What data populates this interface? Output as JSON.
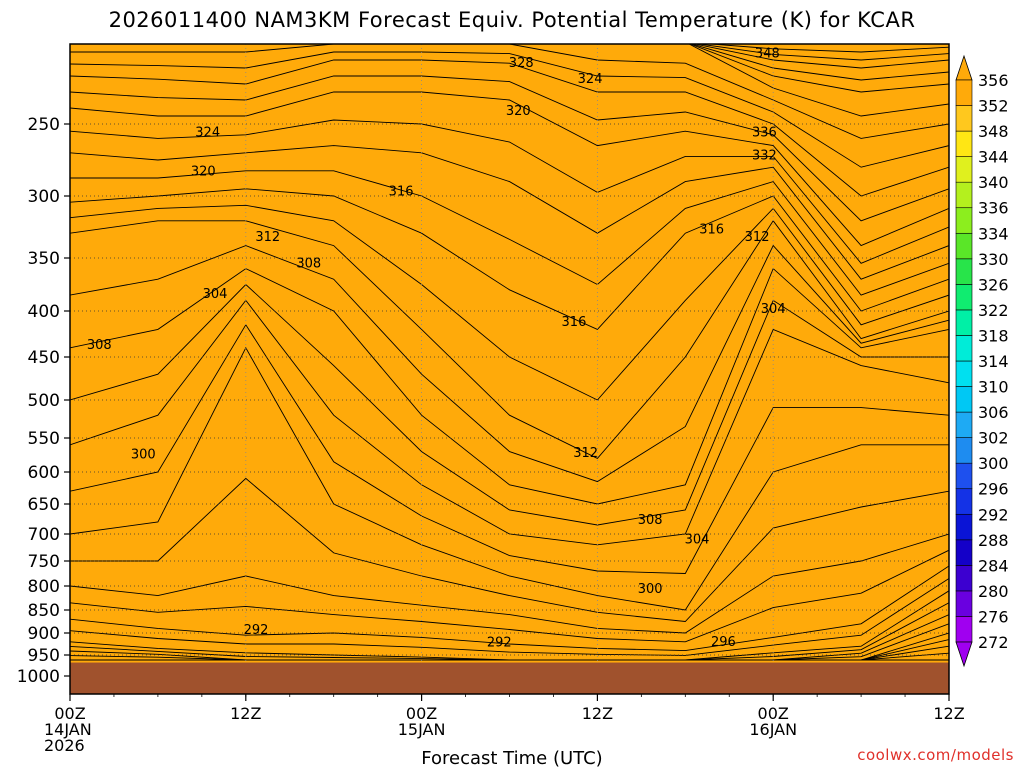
{
  "title": "2026011400 NAM3KM Forecast Equiv. Potential Temperature (K) for KCAR",
  "xlabel": "Forecast Time (UTC)",
  "credit": "coolwx.com/models",
  "chart_data": {
    "type": "heatmap",
    "title": "2026011400 NAM3KM Forecast Equiv. Potential Temperature (K) for KCAR",
    "xlabel": "Forecast Time (UTC)",
    "ylabel": "",
    "x_hours": [
      0,
      6,
      12,
      18,
      24,
      30,
      36,
      42,
      48,
      54,
      60
    ],
    "x_ticks": [
      {
        "hour": 0,
        "lines": [
          "00Z",
          "14JAN",
          "2026"
        ]
      },
      {
        "hour": 12,
        "lines": [
          "12Z"
        ]
      },
      {
        "hour": 24,
        "lines": [
          "00Z",
          "15JAN"
        ]
      },
      {
        "hour": 36,
        "lines": [
          "12Z"
        ]
      },
      {
        "hour": 48,
        "lines": [
          "00Z",
          "16JAN"
        ]
      },
      {
        "hour": 60,
        "lines": [
          "12Z"
        ]
      }
    ],
    "y_ticks": [
      250,
      300,
      350,
      400,
      450,
      500,
      550,
      600,
      650,
      700,
      750,
      800,
      850,
      900,
      950,
      1000
    ],
    "ylim_hPa": [
      200,
      1020
    ],
    "xlim_hours": [
      0,
      60
    ],
    "surface_pressure_hPa": 968,
    "colorbar_levels": [
      272,
      276,
      280,
      284,
      288,
      292,
      296,
      300,
      302,
      306,
      310,
      314,
      318,
      322,
      326,
      330,
      334,
      336,
      340,
      344,
      348,
      352,
      356
    ],
    "colorbar_colors": [
      "#a000f0",
      "#6a00e0",
      "#3c00d0",
      "#1400c8",
      "#0a14d6",
      "#1432e6",
      "#1e50ee",
      "#1e8cf0",
      "#1eaaf4",
      "#00c8f4",
      "#00e0f0",
      "#00ecd8",
      "#00f0a6",
      "#10ec70",
      "#28e44a",
      "#5ae628",
      "#8cee1e",
      "#b4f01e",
      "#e0f01e",
      "#ffe614",
      "#ffc81e",
      "#ffaa0a"
    ],
    "isotherm_profiles": [
      {
        "hour": 0,
        "levels": [
          [
            280,
            962
          ],
          [
            288,
            920
          ],
          [
            292,
            870
          ],
          [
            296,
            800
          ],
          [
            300,
            700
          ],
          [
            304,
            560
          ],
          [
            308,
            440
          ],
          [
            312,
            330
          ],
          [
            316,
            305
          ],
          [
            320,
            270
          ],
          [
            324,
            240
          ],
          [
            328,
            220
          ],
          [
            332,
            205
          ]
        ]
      },
      {
        "hour": 6,
        "levels": [
          [
            280,
            962
          ],
          [
            288,
            935
          ],
          [
            292,
            890
          ],
          [
            296,
            820
          ],
          [
            300,
            680
          ],
          [
            304,
            520
          ],
          [
            308,
            420
          ],
          [
            312,
            320
          ],
          [
            316,
            300
          ],
          [
            320,
            275
          ],
          [
            324,
            245
          ],
          [
            328,
            222
          ],
          [
            332,
            205
          ]
        ]
      },
      {
        "hour": 12,
        "levels": [
          [
            284,
            962
          ],
          [
            288,
            945
          ],
          [
            292,
            905
          ],
          [
            296,
            780
          ],
          [
            300,
            440
          ],
          [
            304,
            390
          ],
          [
            308,
            360
          ],
          [
            312,
            320
          ],
          [
            316,
            295
          ],
          [
            320,
            270
          ],
          [
            324,
            245
          ],
          [
            328,
            225
          ],
          [
            332,
            205
          ]
        ]
      },
      {
        "hour": 18,
        "levels": [
          [
            284,
            962
          ],
          [
            288,
            950
          ],
          [
            292,
            900
          ],
          [
            296,
            820
          ],
          [
            300,
            650
          ],
          [
            304,
            520
          ],
          [
            308,
            400
          ],
          [
            312,
            340
          ],
          [
            316,
            300
          ],
          [
            320,
            265
          ],
          [
            324,
            230
          ],
          [
            328,
            210
          ],
          [
            332,
            200
          ]
        ]
      },
      {
        "hour": 24,
        "levels": [
          [
            284,
            962
          ],
          [
            288,
            955
          ],
          [
            292,
            910
          ],
          [
            296,
            840
          ],
          [
            300,
            720
          ],
          [
            304,
            620
          ],
          [
            308,
            520
          ],
          [
            312,
            420
          ],
          [
            316,
            330
          ],
          [
            320,
            270
          ],
          [
            324,
            230
          ],
          [
            328,
            210
          ],
          [
            332,
            200
          ]
        ]
      },
      {
        "hour": 30,
        "levels": [
          [
            288,
            962
          ],
          [
            292,
            925
          ],
          [
            296,
            860
          ],
          [
            300,
            780
          ],
          [
            304,
            700
          ],
          [
            308,
            620
          ],
          [
            312,
            520
          ],
          [
            316,
            380
          ],
          [
            320,
            290
          ],
          [
            324,
            235
          ],
          [
            328,
            212
          ],
          [
            332,
            200
          ]
        ]
      },
      {
        "hour": 36,
        "levels": [
          [
            288,
            962
          ],
          [
            292,
            935
          ],
          [
            296,
            890
          ],
          [
            300,
            820
          ],
          [
            304,
            720
          ],
          [
            308,
            650
          ],
          [
            312,
            580
          ],
          [
            316,
            420
          ],
          [
            320,
            330
          ],
          [
            324,
            265
          ],
          [
            328,
            230
          ],
          [
            332,
            210
          ]
        ]
      },
      {
        "hour": 42,
        "levels": [
          [
            288,
            962
          ],
          [
            292,
            940
          ],
          [
            296,
            900
          ],
          [
            300,
            850
          ],
          [
            304,
            700
          ],
          [
            308,
            620
          ],
          [
            312,
            450
          ],
          [
            316,
            330
          ],
          [
            320,
            290
          ],
          [
            324,
            255
          ],
          [
            328,
            230
          ],
          [
            332,
            212
          ]
        ]
      },
      {
        "hour": 48,
        "levels": [
          [
            284,
            962
          ],
          [
            288,
            945
          ],
          [
            292,
            910
          ],
          [
            296,
            780
          ],
          [
            300,
            600
          ],
          [
            304,
            420
          ],
          [
            308,
            360
          ],
          [
            312,
            320
          ],
          [
            316,
            300
          ],
          [
            320,
            280
          ],
          [
            324,
            265
          ],
          [
            328,
            250
          ],
          [
            332,
            235
          ],
          [
            336,
            220
          ],
          [
            340,
            210
          ],
          [
            344,
            203
          ]
        ]
      },
      {
        "hour": 54,
        "levels": [
          [
            280,
            962
          ],
          [
            288,
            930
          ],
          [
            292,
            880
          ],
          [
            296,
            750
          ],
          [
            300,
            560
          ],
          [
            304,
            460
          ],
          [
            308,
            440
          ],
          [
            312,
            430
          ],
          [
            316,
            400
          ],
          [
            320,
            370
          ],
          [
            324,
            340
          ],
          [
            328,
            300
          ],
          [
            332,
            260
          ],
          [
            336,
            230
          ],
          [
            340,
            215
          ],
          [
            344,
            205
          ]
        ]
      },
      {
        "hour": 60,
        "levels": [
          [
            272,
            962
          ],
          [
            276,
            930
          ],
          [
            280,
            900
          ],
          [
            284,
            860
          ],
          [
            288,
            810
          ],
          [
            292,
            760
          ],
          [
            296,
            700
          ],
          [
            300,
            560
          ],
          [
            304,
            480
          ],
          [
            308,
            420
          ],
          [
            312,
            400
          ],
          [
            316,
            370
          ],
          [
            320,
            340
          ],
          [
            324,
            310
          ],
          [
            328,
            280
          ],
          [
            332,
            250
          ],
          [
            336,
            225
          ],
          [
            340,
            210
          ],
          [
            344,
            202
          ]
        ]
      }
    ],
    "contour_labels": [
      {
        "text": "328",
        "hour": 30.8,
        "p": 212
      },
      {
        "text": "324",
        "hour": 35.5,
        "p": 222
      },
      {
        "text": "348",
        "hour": 47.6,
        "p": 206
      },
      {
        "text": "320",
        "hour": 30.6,
        "p": 242
      },
      {
        "text": "324",
        "hour": 9.4,
        "p": 256
      },
      {
        "text": "336",
        "hour": 47.4,
        "p": 256
      },
      {
        "text": "332",
        "hour": 47.4,
        "p": 272
      },
      {
        "text": "320",
        "hour": 9.1,
        "p": 283
      },
      {
        "text": "316",
        "hour": 22.6,
        "p": 297
      },
      {
        "text": "312",
        "hour": 13.5,
        "p": 333
      },
      {
        "text": "316",
        "hour": 43.8,
        "p": 327
      },
      {
        "text": "312",
        "hour": 46.9,
        "p": 333
      },
      {
        "text": "308",
        "hour": 16.3,
        "p": 355
      },
      {
        "text": "304",
        "hour": 9.9,
        "p": 384
      },
      {
        "text": "304",
        "hour": 48.0,
        "p": 398
      },
      {
        "text": "316",
        "hour": 34.4,
        "p": 412
      },
      {
        "text": "308",
        "hour": 2.0,
        "p": 437
      },
      {
        "text": "312",
        "hour": 35.2,
        "p": 572
      },
      {
        "text": "300",
        "hour": 5.0,
        "p": 574
      },
      {
        "text": "308",
        "hour": 39.6,
        "p": 677
      },
      {
        "text": "304",
        "hour": 42.8,
        "p": 710
      },
      {
        "text": "300",
        "hour": 39.6,
        "p": 806
      },
      {
        "text": "292",
        "hour": 12.7,
        "p": 893
      },
      {
        "text": "292",
        "hour": 29.3,
        "p": 922
      },
      {
        "text": "296",
        "hour": 44.6,
        "p": 920
      }
    ]
  }
}
